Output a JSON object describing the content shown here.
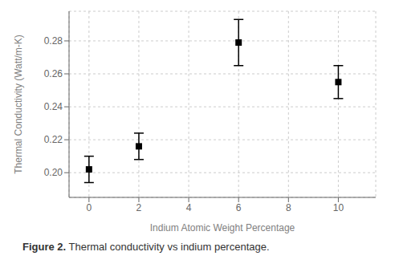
{
  "chart_data": {
    "type": "scatter",
    "xlabel": "Indium Atomic Weight Percentage",
    "ylabel": "Thermal Conductivity (Watt/m-K)",
    "annotations": [
      "Figure 2.",
      " Thermal conductivity vs indium percentage."
    ],
    "x": [
      0,
      2,
      6,
      10
    ],
    "values": [
      0.202,
      0.216,
      0.279,
      0.255
    ],
    "yerr": [
      0.008,
      0.008,
      0.014,
      0.01
    ],
    "color": "#000000",
    "marker": "square",
    "xlim": [
      -0.8,
      11.5
    ],
    "ylim": [
      0.185,
      0.298
    ],
    "xticks": [
      0,
      2,
      4,
      6,
      8,
      10
    ],
    "yticks": [
      {
        "value": 0.2,
        "label": "0.20"
      },
      0.22,
      0.24,
      0.26,
      0.28
    ]
  }
}
